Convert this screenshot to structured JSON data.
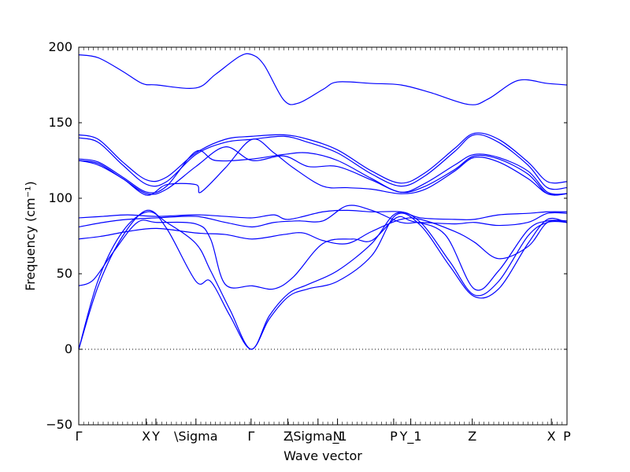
{
  "chart_data": {
    "type": "line",
    "title": "",
    "xlabel": "Wave vector",
    "ylabel": "Frequency (cm⁻¹)",
    "ylim": [
      -50,
      200
    ],
    "yticks": [
      -50,
      0,
      50,
      100,
      150,
      200
    ],
    "ytick_labels": [
      "−50",
      "0",
      "50",
      "100",
      "150",
      "200"
    ],
    "xlim": [
      0,
      1
    ],
    "xticks": [
      {
        "label": "Γ",
        "x": 0.0
      },
      {
        "label": "X",
        "x": 0.138
      },
      {
        "label": "Y",
        "x": 0.158
      },
      {
        "label": "\\Sigma",
        "x": 0.24
      },
      {
        "label": "Γ",
        "x": 0.353
      },
      {
        "label": "Z",
        "x": 0.428
      },
      {
        "label": "\\Sigma_1",
        "x": 0.49
      },
      {
        "label": "N",
        "x": 0.53
      },
      {
        "label": "P",
        "x": 0.645
      },
      {
        "label": "Y_1",
        "x": 0.68
      },
      {
        "label": "Z",
        "x": 0.806
      },
      {
        "label": "X",
        "x": 0.968
      },
      {
        "label": "P",
        "x": 1.0
      }
    ],
    "zero_line": {
      "y": 0,
      "style": "dotted"
    },
    "line_color": "#0000ff",
    "series": [
      {
        "values": [
          [
            0,
            195
          ],
          [
            0.04,
            193
          ],
          [
            0.09,
            184
          ],
          [
            0.13,
            176
          ],
          [
            0.16,
            175
          ],
          [
            0.24,
            173
          ],
          [
            0.28,
            182
          ],
          [
            0.33,
            194
          ],
          [
            0.355,
            195
          ],
          [
            0.38,
            188
          ],
          [
            0.42,
            165
          ],
          [
            0.45,
            163
          ],
          [
            0.5,
            172
          ],
          [
            0.53,
            177
          ],
          [
            0.6,
            176
          ],
          [
            0.66,
            175
          ],
          [
            0.72,
            170
          ],
          [
            0.8,
            162
          ],
          [
            0.84,
            166
          ],
          [
            0.9,
            178
          ],
          [
            0.96,
            176
          ],
          [
            1,
            175
          ]
        ]
      },
      {
        "values": [
          [
            0,
            142
          ],
          [
            0.04,
            139
          ],
          [
            0.09,
            124
          ],
          [
            0.14,
            112
          ],
          [
            0.18,
            114
          ],
          [
            0.24,
            130
          ],
          [
            0.3,
            139
          ],
          [
            0.355,
            141
          ],
          [
            0.42,
            142
          ],
          [
            0.47,
            139
          ],
          [
            0.53,
            132
          ],
          [
            0.6,
            118
          ],
          [
            0.66,
            110
          ],
          [
            0.71,
            117
          ],
          [
            0.77,
            133
          ],
          [
            0.81,
            143
          ],
          [
            0.86,
            139
          ],
          [
            0.92,
            124
          ],
          [
            0.96,
            111
          ],
          [
            1,
            111
          ]
        ]
      },
      {
        "values": [
          [
            0,
            140
          ],
          [
            0.04,
            137
          ],
          [
            0.09,
            122
          ],
          [
            0.14,
            109
          ],
          [
            0.18,
            111
          ],
          [
            0.24,
            129
          ],
          [
            0.3,
            137
          ],
          [
            0.355,
            139
          ],
          [
            0.42,
            141
          ],
          [
            0.47,
            137
          ],
          [
            0.53,
            130
          ],
          [
            0.6,
            116
          ],
          [
            0.66,
            108
          ],
          [
            0.71,
            115
          ],
          [
            0.77,
            131
          ],
          [
            0.81,
            142
          ],
          [
            0.86,
            137
          ],
          [
            0.92,
            122
          ],
          [
            0.96,
            107
          ],
          [
            1,
            107
          ]
        ]
      },
      {
        "values": [
          [
            0,
            126
          ],
          [
            0.04,
            124
          ],
          [
            0.09,
            114
          ],
          [
            0.14,
            104
          ],
          [
            0.18,
            108
          ],
          [
            0.24,
            131
          ],
          [
            0.28,
            125
          ],
          [
            0.355,
            126
          ],
          [
            0.42,
            129
          ],
          [
            0.47,
            130
          ],
          [
            0.53,
            125
          ],
          [
            0.6,
            113
          ],
          [
            0.66,
            104
          ],
          [
            0.71,
            110
          ],
          [
            0.77,
            122
          ],
          [
            0.81,
            129
          ],
          [
            0.86,
            127
          ],
          [
            0.92,
            118
          ],
          [
            0.96,
            104
          ],
          [
            1,
            103
          ]
        ]
      },
      {
        "values": [
          [
            0,
            125
          ],
          [
            0.04,
            123
          ],
          [
            0.09,
            113
          ],
          [
            0.14,
            103
          ],
          [
            0.18,
            106
          ],
          [
            0.24,
            121
          ],
          [
            0.3,
            134
          ],
          [
            0.355,
            125
          ],
          [
            0.42,
            128
          ],
          [
            0.47,
            121
          ],
          [
            0.53,
            121
          ],
          [
            0.6,
            112
          ],
          [
            0.66,
            104
          ],
          [
            0.71,
            108
          ],
          [
            0.77,
            119
          ],
          [
            0.81,
            128
          ],
          [
            0.86,
            126
          ],
          [
            0.92,
            116
          ],
          [
            0.96,
            103
          ],
          [
            1,
            103
          ]
        ]
      },
      {
        "values": [
          [
            0,
            125
          ],
          [
            0.04,
            122
          ],
          [
            0.09,
            113
          ],
          [
            0.14,
            102
          ],
          [
            0.18,
            109
          ],
          [
            0.24,
            109
          ],
          [
            0.25,
            104
          ],
          [
            0.3,
            120
          ],
          [
            0.355,
            139
          ],
          [
            0.4,
            130
          ],
          [
            0.44,
            120
          ],
          [
            0.5,
            108
          ],
          [
            0.55,
            107
          ],
          [
            0.6,
            106
          ],
          [
            0.66,
            103
          ],
          [
            0.71,
            106
          ],
          [
            0.77,
            118
          ],
          [
            0.81,
            127
          ],
          [
            0.86,
            124
          ],
          [
            0.92,
            113
          ],
          [
            0.96,
            103
          ],
          [
            1,
            103
          ]
        ]
      },
      {
        "values": [
          [
            0,
            87
          ],
          [
            0.05,
            88
          ],
          [
            0.1,
            89
          ],
          [
            0.16,
            88
          ],
          [
            0.24,
            89
          ],
          [
            0.3,
            88
          ],
          [
            0.355,
            87
          ],
          [
            0.4,
            89
          ],
          [
            0.43,
            86
          ],
          [
            0.5,
            91
          ],
          [
            0.55,
            92
          ],
          [
            0.6,
            91
          ],
          [
            0.66,
            91
          ],
          [
            0.7,
            87
          ],
          [
            0.77,
            86
          ],
          [
            0.81,
            86
          ],
          [
            0.86,
            89
          ],
          [
            0.92,
            90
          ],
          [
            0.96,
            91
          ],
          [
            1,
            91
          ]
        ]
      },
      {
        "values": [
          [
            0,
            81
          ],
          [
            0.05,
            84
          ],
          [
            0.1,
            86
          ],
          [
            0.16,
            87
          ],
          [
            0.24,
            88
          ],
          [
            0.3,
            84
          ],
          [
            0.355,
            81
          ],
          [
            0.4,
            84
          ],
          [
            0.45,
            85
          ],
          [
            0.5,
            85
          ],
          [
            0.55,
            95
          ],
          [
            0.6,
            92
          ],
          [
            0.66,
            84
          ],
          [
            0.7,
            84
          ],
          [
            0.77,
            83
          ],
          [
            0.81,
            84
          ],
          [
            0.86,
            82
          ],
          [
            0.92,
            84
          ],
          [
            0.96,
            90
          ],
          [
            1,
            90
          ]
        ]
      },
      {
        "values": [
          [
            0,
            73
          ],
          [
            0.05,
            75
          ],
          [
            0.1,
            78
          ],
          [
            0.16,
            80
          ],
          [
            0.24,
            77
          ],
          [
            0.3,
            76
          ],
          [
            0.355,
            73
          ],
          [
            0.42,
            76
          ],
          [
            0.46,
            77
          ],
          [
            0.5,
            72
          ],
          [
            0.55,
            70
          ],
          [
            0.6,
            78
          ],
          [
            0.66,
            86
          ],
          [
            0.7,
            86
          ],
          [
            0.77,
            78
          ],
          [
            0.81,
            71
          ],
          [
            0.86,
            60
          ],
          [
            0.92,
            68
          ],
          [
            0.96,
            84
          ],
          [
            1,
            84
          ]
        ]
      },
      {
        "values": [
          [
            0,
            42
          ],
          [
            0.03,
            46
          ],
          [
            0.07,
            64
          ],
          [
            0.12,
            84
          ],
          [
            0.16,
            84
          ],
          [
            0.24,
            83
          ],
          [
            0.27,
            73
          ],
          [
            0.3,
            43
          ],
          [
            0.355,
            42
          ],
          [
            0.4,
            40
          ],
          [
            0.44,
            48
          ],
          [
            0.5,
            70
          ],
          [
            0.56,
            73
          ],
          [
            0.6,
            72
          ],
          [
            0.65,
            87
          ],
          [
            0.68,
            85
          ],
          [
            0.75,
            76
          ],
          [
            0.81,
            40
          ],
          [
            0.86,
            52
          ],
          [
            0.92,
            79
          ],
          [
            0.96,
            85
          ],
          [
            1,
            85
          ]
        ]
      },
      {
        "values": [
          [
            0,
            0
          ],
          [
            0.04,
            46
          ],
          [
            0.09,
            78
          ],
          [
            0.14,
            91
          ],
          [
            0.18,
            84
          ],
          [
            0.24,
            70
          ],
          [
            0.27,
            52
          ],
          [
            0.31,
            26
          ],
          [
            0.353,
            0
          ],
          [
            0.39,
            22
          ],
          [
            0.43,
            37
          ],
          [
            0.47,
            43
          ],
          [
            0.53,
            52
          ],
          [
            0.6,
            70
          ],
          [
            0.65,
            90
          ],
          [
            0.7,
            84
          ],
          [
            0.76,
            58
          ],
          [
            0.81,
            36
          ],
          [
            0.86,
            45
          ],
          [
            0.92,
            75
          ],
          [
            0.96,
            84
          ],
          [
            1,
            84
          ]
        ]
      },
      {
        "values": [
          [
            0,
            0
          ],
          [
            0.04,
            42
          ],
          [
            0.09,
            75
          ],
          [
            0.14,
            92
          ],
          [
            0.18,
            80
          ],
          [
            0.24,
            45
          ],
          [
            0.27,
            45
          ],
          [
            0.31,
            22
          ],
          [
            0.353,
            0
          ],
          [
            0.39,
            20
          ],
          [
            0.43,
            35
          ],
          [
            0.47,
            40
          ],
          [
            0.53,
            45
          ],
          [
            0.6,
            62
          ],
          [
            0.65,
            89
          ],
          [
            0.7,
            82
          ],
          [
            0.76,
            55
          ],
          [
            0.81,
            35
          ],
          [
            0.86,
            40
          ],
          [
            0.92,
            70
          ],
          [
            0.96,
            86
          ],
          [
            1,
            84
          ]
        ]
      }
    ]
  }
}
